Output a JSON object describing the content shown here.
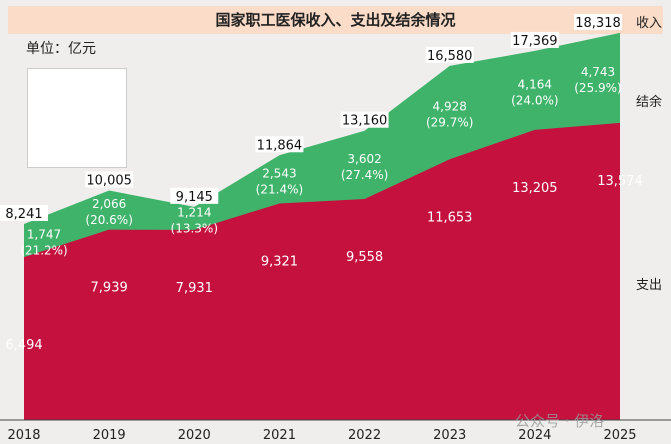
{
  "chart_data": {
    "type": "area",
    "title": "国家职工医保收入、支出及结余情况",
    "unit": "单位：亿元",
    "categories": [
      "2018",
      "2019",
      "2020",
      "2021",
      "2022",
      "2023",
      "2024",
      "2025"
    ],
    "series": [
      {
        "name": "支出",
        "color": "#c4113e",
        "values": [
          6494,
          7939,
          7931,
          9321,
          9558,
          11653,
          13205,
          13574
        ],
        "labels": [
          "6,494",
          "7,939",
          "7,931",
          "9,321",
          "9,558",
          "11,653",
          "13,205",
          "13,574"
        ]
      },
      {
        "name": "结余",
        "color": "#3fb36a",
        "values": [
          1747,
          2066,
          1214,
          2543,
          3602,
          4928,
          4164,
          4743
        ],
        "labels": [
          "1,747",
          "2,066",
          "1,214",
          "2,543",
          "3,602",
          "4,928",
          "4,164",
          "4,743"
        ],
        "pct": [
          "(21.2%)",
          "(20.6%)",
          "(13.3%)",
          "(21.4%)",
          "(27.4%)",
          "(29.7%)",
          "(24.0%)",
          "(25.9%)"
        ]
      },
      {
        "name": "收入",
        "values": [
          8241,
          10005,
          9145,
          11864,
          13160,
          16580,
          17369,
          18318
        ],
        "labels": [
          "8,241",
          "10,005",
          "9,145",
          "11,864",
          "13,160",
          "16,580",
          "17,369",
          "18,318"
        ]
      }
    ],
    "ylim": [
      -2100,
      19000
    ]
  },
  "watermark": "公众号 · 伊洛"
}
